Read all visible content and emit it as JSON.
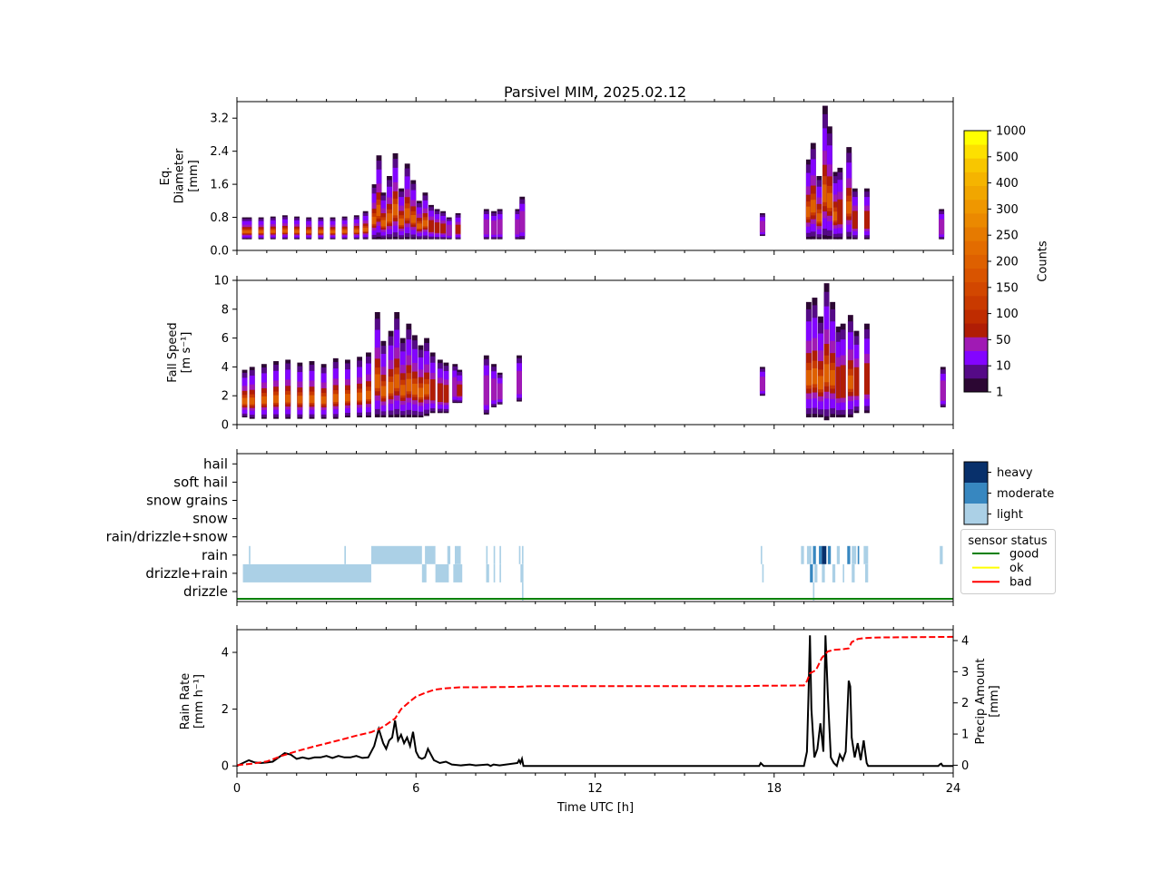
{
  "title": "Parsivel MIM, 2025.02.12",
  "x_axis": {
    "label": "Time UTC [h]",
    "range": [
      0,
      24
    ],
    "ticks": [
      0,
      6,
      12,
      18,
      24
    ],
    "tick_labels": [
      "0",
      "6",
      "12",
      "18",
      "24"
    ]
  },
  "colors": {
    "heavy": "#08306b",
    "moderate": "#3787c0",
    "light": "#abd0e6",
    "good": "#008000",
    "ok": "#ffff00",
    "bad": "#ff0000",
    "rain_rate": "#000000",
    "precip_amount": "#ff0000"
  },
  "colorbar": {
    "label": "Counts",
    "tick_labels": [
      "1",
      "10",
      "50",
      "100",
      "150",
      "200",
      "250",
      "300",
      "400",
      "500",
      "1000"
    ],
    "colors": [
      "#2c0733",
      "#550a87",
      "#8304ff",
      "#a01ab4",
      "#b01d05",
      "#bf2c00",
      "#c93a00",
      "#d24700",
      "#d95400",
      "#de6000",
      "#e36c00",
      "#e67a00",
      "#eb8900",
      "#ef9700",
      "#f1a600",
      "#f5b400",
      "#f8c600",
      "#fde000",
      "#ffff00"
    ]
  },
  "chart_data": [
    {
      "type": "heatmap",
      "name": "diameter",
      "ylabel": [
        "Eq.",
        "Diameter",
        "[mm]"
      ],
      "ylim": [
        0,
        3.6
      ],
      "yticks": [
        0,
        0.8,
        1.6,
        2.4,
        3.2
      ],
      "ytick_labels": [
        "0.0",
        "0.8",
        "1.6",
        "2.4",
        "3.2"
      ],
      "columns": [
        [
          0.25,
          0.27,
          0.8,
          3
        ],
        [
          0.4,
          0.27,
          0.8,
          3
        ],
        [
          0.8,
          0.27,
          0.8,
          3
        ],
        [
          1.2,
          0.27,
          0.82,
          3
        ],
        [
          1.6,
          0.27,
          0.85,
          3
        ],
        [
          2.0,
          0.27,
          0.82,
          3
        ],
        [
          2.4,
          0.27,
          0.8,
          3
        ],
        [
          2.8,
          0.27,
          0.8,
          3
        ],
        [
          3.2,
          0.27,
          0.8,
          3
        ],
        [
          3.6,
          0.27,
          0.82,
          3
        ],
        [
          4.0,
          0.27,
          0.85,
          3
        ],
        [
          4.3,
          0.27,
          0.95,
          3
        ],
        [
          4.6,
          0.27,
          1.6,
          3
        ],
        [
          4.75,
          0.27,
          2.3,
          4
        ],
        [
          4.9,
          0.27,
          1.4,
          3
        ],
        [
          5.1,
          0.27,
          1.8,
          3
        ],
        [
          5.3,
          0.27,
          2.35,
          4
        ],
        [
          5.5,
          0.27,
          1.5,
          3
        ],
        [
          5.7,
          0.27,
          2.1,
          3
        ],
        [
          5.9,
          0.27,
          1.7,
          3
        ],
        [
          6.1,
          0.27,
          1.2,
          3
        ],
        [
          6.3,
          0.27,
          1.4,
          3
        ],
        [
          6.5,
          0.27,
          1.1,
          2
        ],
        [
          6.7,
          0.27,
          1.0,
          2
        ],
        [
          6.9,
          0.27,
          0.95,
          2
        ],
        [
          7.1,
          0.27,
          0.8,
          1
        ],
        [
          7.4,
          0.27,
          0.9,
          2
        ],
        [
          8.35,
          0.27,
          1.0,
          1
        ],
        [
          8.6,
          0.27,
          0.95,
          1
        ],
        [
          8.8,
          0.27,
          1.0,
          1
        ],
        [
          9.4,
          0.27,
          1.0,
          1
        ],
        [
          9.55,
          0.27,
          1.3,
          1
        ],
        [
          17.6,
          0.35,
          0.9,
          1
        ],
        [
          19.15,
          0.27,
          2.2,
          3
        ],
        [
          19.3,
          0.27,
          2.6,
          4
        ],
        [
          19.5,
          0.27,
          1.8,
          3
        ],
        [
          19.7,
          0.27,
          3.5,
          4
        ],
        [
          19.85,
          0.27,
          3.0,
          3
        ],
        [
          20.05,
          0.27,
          1.9,
          3
        ],
        [
          20.2,
          0.27,
          2.0,
          2
        ],
        [
          20.5,
          0.27,
          2.5,
          3
        ],
        [
          20.7,
          0.27,
          1.5,
          2
        ],
        [
          21.1,
          0.27,
          1.5,
          2
        ],
        [
          23.6,
          0.27,
          1.0,
          1
        ]
      ]
    },
    {
      "type": "heatmap",
      "name": "fall_speed",
      "ylabel": [
        "Fall Speed",
        "[m s⁻¹]"
      ],
      "ylim": [
        0,
        10
      ],
      "yticks": [
        0,
        2,
        4,
        6,
        8,
        10
      ],
      "ytick_labels": [
        "0",
        "2",
        "4",
        "6",
        "8",
        "10"
      ],
      "columns": [
        [
          0.25,
          0.5,
          3.8,
          3
        ],
        [
          0.5,
          0.4,
          4.0,
          3
        ],
        [
          0.9,
          0.4,
          4.2,
          3
        ],
        [
          1.3,
          0.4,
          4.4,
          3
        ],
        [
          1.7,
          0.4,
          4.5,
          3
        ],
        [
          2.1,
          0.4,
          4.3,
          3
        ],
        [
          2.5,
          0.4,
          4.4,
          3
        ],
        [
          2.9,
          0.4,
          4.2,
          3
        ],
        [
          3.3,
          0.4,
          4.6,
          3
        ],
        [
          3.7,
          0.5,
          4.5,
          3
        ],
        [
          4.1,
          0.5,
          4.7,
          3
        ],
        [
          4.4,
          0.5,
          5.0,
          3
        ],
        [
          4.7,
          0.5,
          7.8,
          4
        ],
        [
          4.9,
          0.5,
          5.8,
          3
        ],
        [
          5.15,
          0.5,
          6.5,
          3
        ],
        [
          5.35,
          0.5,
          7.8,
          4
        ],
        [
          5.55,
          0.5,
          6.0,
          3
        ],
        [
          5.75,
          0.5,
          7.0,
          3
        ],
        [
          5.95,
          0.5,
          6.2,
          3
        ],
        [
          6.15,
          0.5,
          5.5,
          3
        ],
        [
          6.35,
          0.6,
          6.0,
          3
        ],
        [
          6.55,
          0.8,
          5.0,
          2
        ],
        [
          6.8,
          0.8,
          4.5,
          2
        ],
        [
          7.0,
          0.8,
          4.3,
          2
        ],
        [
          7.3,
          1.5,
          4.2,
          1
        ],
        [
          7.45,
          1.5,
          3.8,
          2
        ],
        [
          8.35,
          0.7,
          4.8,
          1
        ],
        [
          8.6,
          1.2,
          4.2,
          1
        ],
        [
          8.8,
          1.4,
          3.6,
          1
        ],
        [
          9.45,
          1.6,
          4.8,
          1
        ],
        [
          17.6,
          2.0,
          4.0,
          1
        ],
        [
          19.15,
          0.5,
          8.5,
          3
        ],
        [
          19.35,
          0.5,
          8.8,
          4
        ],
        [
          19.55,
          0.5,
          7.5,
          3
        ],
        [
          19.75,
          0.3,
          9.8,
          4
        ],
        [
          19.95,
          0.5,
          8.5,
          3
        ],
        [
          20.15,
          0.5,
          6.8,
          2
        ],
        [
          20.3,
          0.5,
          7.0,
          2
        ],
        [
          20.55,
          0.5,
          7.6,
          3
        ],
        [
          20.75,
          0.8,
          6.5,
          2
        ],
        [
          21.1,
          0.8,
          7.0,
          2
        ],
        [
          23.65,
          1.2,
          4.0,
          1
        ]
      ]
    },
    {
      "type": "table",
      "name": "precip_type",
      "categories": [
        "drizzle",
        "drizzle+rain",
        "rain",
        "rain/drizzle+snow",
        "snow",
        "snow grains",
        "soft hail",
        "hail"
      ],
      "intensity_legend": [
        "heavy",
        "moderate",
        "light"
      ],
      "status_legend": {
        "title": "sensor status",
        "items": [
          "good",
          "ok",
          "bad"
        ]
      },
      "status": "good",
      "segments": [
        [
          1,
          0.2,
          4.5,
          "light"
        ],
        [
          1,
          6.2,
          6.35,
          "light"
        ],
        [
          1,
          6.65,
          7.1,
          "light"
        ],
        [
          1,
          7.25,
          7.55,
          "light"
        ],
        [
          1,
          8.35,
          8.45,
          "light"
        ],
        [
          1,
          8.6,
          8.65,
          "light"
        ],
        [
          1,
          8.8,
          8.85,
          "light"
        ],
        [
          1,
          9.5,
          9.6,
          "light"
        ],
        [
          1,
          17.6,
          17.65,
          "light"
        ],
        [
          1,
          19.2,
          19.3,
          "moderate"
        ],
        [
          1,
          19.35,
          19.45,
          "light"
        ],
        [
          1,
          19.6,
          19.7,
          "light"
        ],
        [
          1,
          19.95,
          20.05,
          "light"
        ],
        [
          1,
          20.3,
          20.35,
          "light"
        ],
        [
          1,
          20.6,
          20.7,
          "light"
        ],
        [
          1,
          21.05,
          21.15,
          "light"
        ],
        [
          2,
          0.4,
          0.45,
          "light"
        ],
        [
          2,
          3.6,
          3.65,
          "light"
        ],
        [
          2,
          4.5,
          6.2,
          "light"
        ],
        [
          2,
          6.3,
          6.65,
          "light"
        ],
        [
          2,
          7.05,
          7.15,
          "light"
        ],
        [
          2,
          7.3,
          7.5,
          "light"
        ],
        [
          2,
          8.35,
          8.4,
          "light"
        ],
        [
          2,
          8.6,
          8.65,
          "light"
        ],
        [
          2,
          8.8,
          8.85,
          "light"
        ],
        [
          2,
          9.45,
          9.5,
          "light"
        ],
        [
          2,
          9.55,
          9.6,
          "light"
        ],
        [
          2,
          17.55,
          17.6,
          "light"
        ],
        [
          2,
          18.9,
          19.0,
          "light"
        ],
        [
          2,
          19.1,
          19.25,
          "light"
        ],
        [
          2,
          19.3,
          19.4,
          "moderate"
        ],
        [
          2,
          19.5,
          19.6,
          "moderate"
        ],
        [
          2,
          19.6,
          19.75,
          "heavy"
        ],
        [
          2,
          19.8,
          19.9,
          "moderate"
        ],
        [
          2,
          20.1,
          20.2,
          "light"
        ],
        [
          2,
          20.45,
          20.55,
          "moderate"
        ],
        [
          2,
          20.6,
          20.75,
          "light"
        ],
        [
          2,
          20.8,
          20.85,
          "moderate"
        ],
        [
          2,
          21.0,
          21.05,
          "light"
        ],
        [
          2,
          21.05,
          21.15,
          "light"
        ],
        [
          2,
          23.55,
          23.65,
          "light"
        ],
        [
          0,
          9.55,
          9.6,
          "light"
        ],
        [
          0,
          19.3,
          19.35,
          "light"
        ]
      ]
    },
    {
      "type": "line",
      "name": "rain",
      "ylabel_left": [
        "Rain Rate",
        "[mm h⁻¹]"
      ],
      "ylabel_right": [
        "Precip Amount",
        "[mm]"
      ],
      "ylim_left": [
        -0.25,
        4.8
      ],
      "ylim_right": [
        -0.25,
        4.35
      ],
      "yticks_left": [
        0,
        2,
        4
      ],
      "yticks_right": [
        0,
        1,
        2,
        3,
        4
      ],
      "series": [
        {
          "axis": "left",
          "x": [
            0,
            0.2,
            0.4,
            0.6,
            0.8,
            1.0,
            1.2,
            1.4,
            1.6,
            1.8,
            2.0,
            2.2,
            2.4,
            2.6,
            2.8,
            3.0,
            3.2,
            3.4,
            3.6,
            3.8,
            4.0,
            4.2,
            4.4,
            4.6,
            4.75,
            4.9,
            5.0,
            5.1,
            5.2,
            5.3,
            5.4,
            5.5,
            5.6,
            5.7,
            5.8,
            5.9,
            6.0,
            6.1,
            6.2,
            6.3,
            6.4,
            6.5,
            6.6,
            6.8,
            7.0,
            7.2,
            7.5,
            7.8,
            8.0,
            8.4,
            8.5,
            8.6,
            8.8,
            9.4,
            9.45,
            9.5,
            9.55,
            9.6,
            9.65,
            10,
            17.5,
            17.55,
            17.6,
            17.65,
            19.0,
            19.1,
            19.15,
            19.2,
            19.25,
            19.35,
            19.45,
            19.55,
            19.65,
            19.72,
            19.8,
            19.9,
            20.0,
            20.1,
            20.2,
            20.3,
            20.4,
            20.5,
            20.55,
            20.6,
            20.7,
            20.8,
            20.9,
            21.0,
            21.05,
            21.1,
            21.15,
            21.2,
            23.5,
            23.55,
            23.6,
            23.65,
            24
          ],
          "y": [
            0,
            0.1,
            0.2,
            0.12,
            0.1,
            0.12,
            0.15,
            0.3,
            0.45,
            0.4,
            0.25,
            0.3,
            0.25,
            0.3,
            0.3,
            0.35,
            0.28,
            0.35,
            0.3,
            0.3,
            0.35,
            0.28,
            0.3,
            0.7,
            1.3,
            0.8,
            0.6,
            0.9,
            1.0,
            1.6,
            0.9,
            1.1,
            0.8,
            1.0,
            0.7,
            1.2,
            0.5,
            0.3,
            0.25,
            0.3,
            0.6,
            0.4,
            0.2,
            0.1,
            0.15,
            0.05,
            0.02,
            0.05,
            0.02,
            0.05,
            0,
            0.05,
            0.02,
            0.1,
            0.2,
            0.1,
            0.25,
            0,
            0,
            0,
            0,
            0.1,
            0.05,
            0,
            0,
            0.5,
            2.5,
            4.6,
            2.0,
            0.3,
            0.6,
            1.5,
            0.5,
            4.6,
            2.5,
            0.3,
            0.1,
            0,
            0.4,
            0.2,
            0.5,
            3.0,
            2.8,
            1.0,
            0.3,
            0.8,
            0.2,
            0.9,
            0.5,
            0.1,
            0,
            0,
            0,
            0.05,
            0.08,
            0,
            0
          ]
        },
        {
          "axis": "right",
          "x": [
            0,
            0.5,
            1.0,
            1.5,
            2.0,
            2.5,
            3.0,
            3.5,
            4.0,
            4.5,
            4.8,
            5.0,
            5.3,
            5.5,
            5.8,
            6.0,
            6.3,
            6.6,
            7.0,
            7.5,
            8.0,
            9.0,
            9.5,
            10,
            12,
            15,
            17,
            17.6,
            19.0,
            19.1,
            19.2,
            19.4,
            19.6,
            19.8,
            20.0,
            20.3,
            20.5,
            20.6,
            20.8,
            21.0,
            21.5,
            24
          ],
          "y": [
            0,
            0.05,
            0.12,
            0.3,
            0.45,
            0.58,
            0.7,
            0.82,
            0.95,
            1.06,
            1.18,
            1.3,
            1.5,
            1.8,
            2.05,
            2.2,
            2.32,
            2.42,
            2.47,
            2.5,
            2.5,
            2.51,
            2.52,
            2.54,
            2.54,
            2.54,
            2.54,
            2.55,
            2.56,
            2.7,
            2.95,
            3.05,
            3.45,
            3.65,
            3.7,
            3.72,
            3.75,
            3.95,
            4.05,
            4.08,
            4.1,
            4.12
          ]
        }
      ]
    }
  ]
}
